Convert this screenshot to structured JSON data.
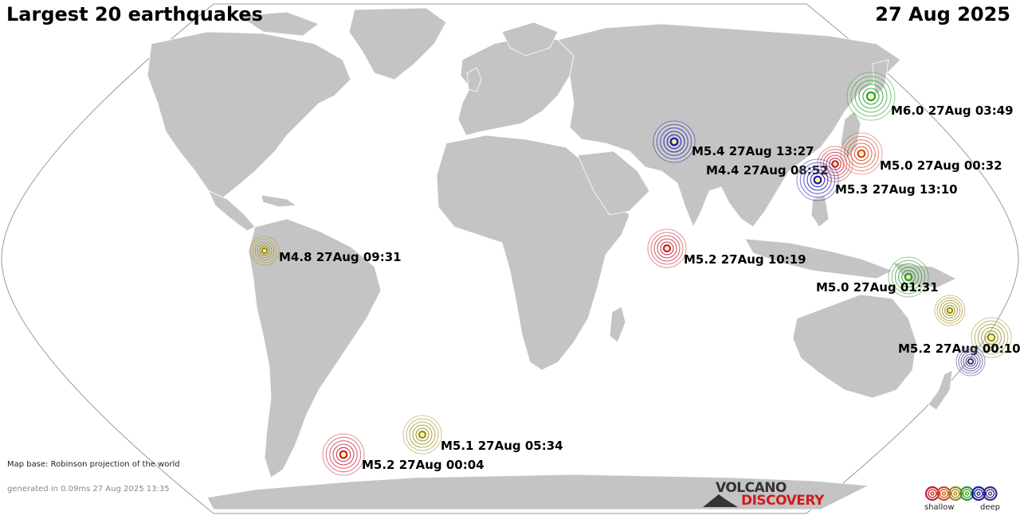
{
  "header": {
    "title": "Largest 20 earthquakes",
    "date": "27 Aug 2025"
  },
  "quakes": [
    {
      "label": "M6.0 27Aug 03:49",
      "color": "#2e9c2e"
    },
    {
      "label": "M5.4 27Aug 13:27",
      "color": "#1a1aa6"
    },
    {
      "label": "M4.4 27Aug 08:52",
      "color": "#c41e2e"
    },
    {
      "label": "M5.0 27Aug 00:32",
      "color": "#d04a2a"
    },
    {
      "label": "M5.3 27Aug 13:10",
      "color": "#1a1aa6"
    },
    {
      "label": "M4.8 27Aug 09:31",
      "color": "#9a8a1a"
    },
    {
      "label": "M5.2 27Aug 10:19",
      "color": "#c41e2e"
    },
    {
      "label": "M5.0 27Aug 01:31",
      "color": "#2e9c2e"
    },
    {
      "label": "M5.2 27Aug 00:10",
      "color": "#9a8a1a"
    },
    {
      "label": "M5.1 27Aug 05:34",
      "color": "#9a8a1a"
    },
    {
      "label": "M5.2 27Aug 00:04",
      "color": "#c41e2e"
    },
    {
      "label": "",
      "color": "#9a8a1a"
    },
    {
      "label": "",
      "color": "#3a2a8a"
    }
  ],
  "footer": {
    "map_base": "Map base: Robinson projection of the world",
    "generated": "generated in 0.09ms 27 Aug 2025 13:35"
  },
  "logo": {
    "top": "VOLCANO",
    "bottom": "DISCOVERY"
  },
  "legend": {
    "shallow": "shallow",
    "deep": "deep",
    "colors": [
      "#c41e2e",
      "#d04a2a",
      "#9a8a1a",
      "#2e9c2e",
      "#1a1aa6",
      "#3a2a8a"
    ]
  },
  "colors": {
    "ocean": "#ffffff",
    "land": "#c4c4c4",
    "border": "#ffffff"
  }
}
